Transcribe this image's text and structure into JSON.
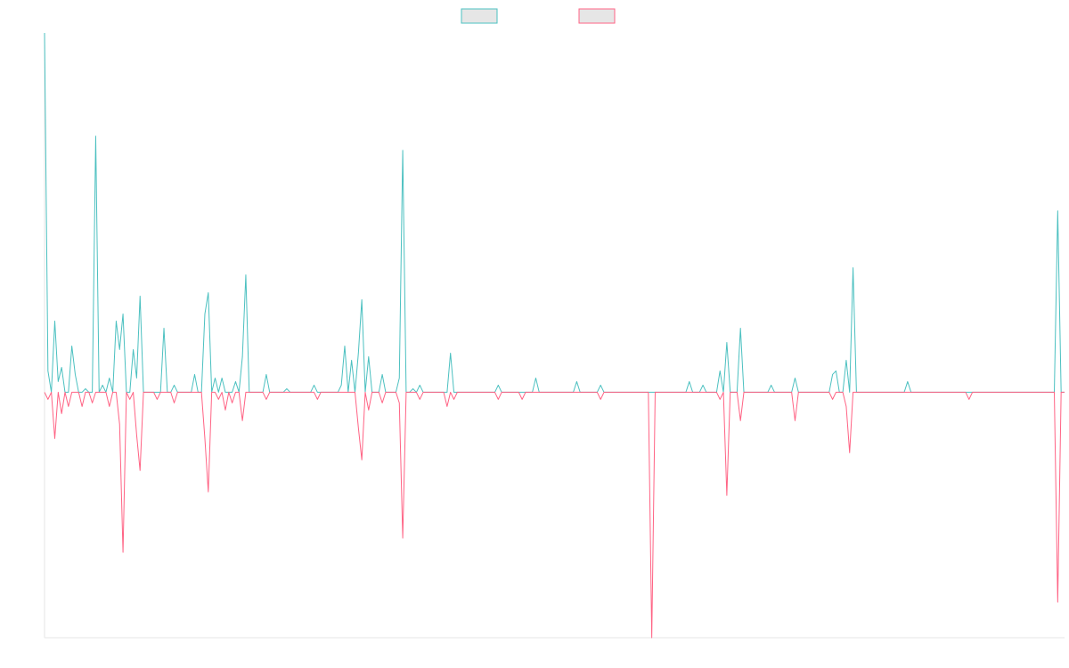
{
  "chart_data": {
    "type": "line",
    "legend": "top",
    "ylim": [
      -69,
      101
    ],
    "categories": [
      null,
      null,
      null,
      null,
      null,
      null,
      null,
      null,
      null,
      null,
      null,
      null,
      null,
      null,
      null,
      null,
      null,
      null,
      null,
      null,
      null,
      null,
      null,
      null,
      null,
      null,
      null,
      null,
      null,
      null,
      null,
      null,
      null,
      null,
      null,
      null,
      null,
      null,
      null,
      null,
      null,
      null,
      null,
      null,
      null,
      null,
      null,
      null,
      null,
      null,
      null,
      null,
      null,
      null,
      null,
      null,
      null,
      null,
      null,
      null,
      null,
      null,
      null,
      null,
      null,
      null,
      null,
      null,
      null,
      null,
      null,
      null,
      null,
      null,
      null,
      null,
      null,
      null,
      null,
      null,
      null,
      null,
      null,
      null,
      null,
      null,
      null,
      null,
      null,
      null,
      null,
      null,
      null,
      null,
      null,
      null,
      null,
      null,
      null,
      null,
      null,
      null,
      null,
      null,
      null,
      null,
      null,
      null,
      null,
      null,
      null,
      null,
      null,
      null,
      null,
      null,
      null,
      null,
      null,
      null,
      null,
      null,
      null,
      null,
      null,
      null,
      null,
      null,
      null,
      null,
      null,
      null,
      null,
      null,
      null,
      null,
      null,
      null,
      null,
      null,
      null,
      null,
      null,
      null,
      null,
      null,
      null,
      null,
      null,
      null,
      null,
      null,
      null,
      null,
      null,
      null,
      null,
      null,
      null,
      null,
      null,
      null,
      null,
      null,
      null,
      null,
      null,
      null,
      null,
      null,
      null,
      null,
      null,
      null,
      null,
      null,
      null,
      null,
      null,
      null,
      null,
      null,
      null,
      null,
      null,
      null,
      null,
      null,
      null,
      null,
      null,
      null,
      null,
      null,
      null,
      null,
      null,
      null,
      null,
      null,
      null,
      null,
      null,
      null,
      null,
      null,
      null,
      null,
      null,
      null,
      null,
      null,
      null,
      null,
      null,
      null,
      null,
      null,
      null,
      null,
      null,
      null,
      null,
      null,
      null,
      null,
      null,
      null,
      null,
      null,
      null,
      null,
      null,
      null,
      null,
      null,
      null,
      null,
      null,
      null,
      null,
      null,
      null,
      null,
      null,
      null,
      null,
      null,
      null,
      null,
      null,
      null,
      null,
      null,
      null,
      null,
      null,
      null,
      null,
      null,
      null,
      null,
      null,
      null,
      null,
      null,
      null,
      null,
      null,
      null,
      null,
      null,
      null,
      null,
      null,
      null,
      null,
      null,
      null,
      null,
      null,
      null,
      null,
      null,
      null,
      null,
      null,
      null,
      null,
      null,
      null,
      null,
      null,
      null,
      null,
      null,
      null,
      null,
      null,
      null
    ],
    "series": [
      {
        "color": "#4bc0c0",
        "values": [
          101,
          6,
          0,
          20,
          3,
          7,
          0,
          0,
          13,
          5,
          0,
          0,
          1,
          0,
          0,
          72,
          0,
          2,
          0,
          4,
          0,
          20,
          12,
          22,
          0,
          0,
          12,
          4,
          27,
          0,
          0,
          0,
          0,
          0,
          0,
          18,
          0,
          0,
          2,
          0,
          0,
          0,
          0,
          0,
          5,
          0,
          0,
          22,
          28,
          0,
          4,
          0,
          4,
          0,
          0,
          0,
          3,
          0,
          10,
          33,
          0,
          0,
          0,
          0,
          0,
          5,
          0,
          0,
          0,
          0,
          0,
          1,
          0,
          0,
          0,
          0,
          0,
          0,
          0,
          2,
          0,
          0,
          0,
          0,
          0,
          0,
          0,
          2,
          13,
          0,
          9,
          0,
          11,
          26,
          0,
          10,
          0,
          0,
          0,
          5,
          0,
          0,
          0,
          0,
          4,
          68,
          0,
          0,
          1,
          0,
          2,
          0,
          0,
          0,
          0,
          0,
          0,
          0,
          0,
          11,
          0,
          0,
          0,
          0,
          0,
          0,
          0,
          0,
          0,
          0,
          0,
          0,
          0,
          2,
          0,
          0,
          0,
          0,
          0,
          0,
          0,
          0,
          0,
          0,
          4,
          0,
          0,
          0,
          0,
          0,
          0,
          0,
          0,
          0,
          0,
          0,
          3,
          0,
          0,
          0,
          0,
          0,
          0,
          2,
          0,
          0,
          0,
          0,
          0,
          0,
          0,
          0,
          0,
          0,
          0,
          0,
          0,
          0,
          0,
          0,
          0,
          0,
          0,
          0,
          0,
          0,
          0,
          0,
          0,
          3,
          0,
          0,
          0,
          2,
          0,
          0,
          0,
          0,
          6,
          0,
          14,
          0,
          0,
          0,
          18,
          0,
          0,
          0,
          0,
          0,
          0,
          0,
          0,
          2,
          0,
          0,
          0,
          0,
          0,
          0,
          4,
          0,
          0,
          0,
          0,
          0,
          0,
          0,
          0,
          0,
          0,
          5,
          6,
          0,
          0,
          9,
          0,
          35,
          0,
          0,
          0,
          0,
          0,
          0,
          0,
          0,
          0,
          0,
          0,
          0,
          0,
          0,
          0,
          3,
          0,
          0,
          0,
          0,
          0,
          0,
          0,
          0,
          0,
          0,
          0,
          0,
          0,
          0,
          0,
          0,
          0,
          0,
          0,
          0,
          0,
          0,
          0,
          0,
          0,
          0,
          0,
          0,
          0,
          0,
          0,
          0,
          0,
          0,
          0,
          0,
          0,
          0,
          0,
          0,
          0,
          0,
          0,
          51,
          0,
          0
        ]
      },
      {
        "color": "#ff6384",
        "values": [
          0,
          -2,
          0,
          -13,
          0,
          -6,
          0,
          -4,
          0,
          0,
          0,
          -4,
          0,
          0,
          -3,
          0,
          0,
          0,
          0,
          -4,
          0,
          0,
          -9,
          -45,
          0,
          -2,
          0,
          -12,
          -22,
          0,
          0,
          0,
          0,
          -2,
          0,
          0,
          0,
          0,
          -3,
          0,
          0,
          0,
          0,
          0,
          0,
          0,
          0,
          -13,
          -28,
          0,
          0,
          -2,
          0,
          -5,
          0,
          -3,
          0,
          0,
          -8,
          0,
          0,
          0,
          0,
          0,
          0,
          -2,
          0,
          0,
          0,
          0,
          0,
          0,
          0,
          0,
          0,
          0,
          0,
          0,
          0,
          0,
          -2,
          0,
          0,
          0,
          0,
          0,
          0,
          0,
          0,
          0,
          0,
          0,
          -10,
          -19,
          0,
          -5,
          0,
          0,
          0,
          -3,
          0,
          0,
          0,
          0,
          -3,
          -41,
          0,
          0,
          0,
          0,
          -2,
          0,
          0,
          0,
          0,
          0,
          0,
          0,
          -4,
          0,
          -2,
          0,
          0,
          0,
          0,
          0,
          0,
          0,
          0,
          0,
          0,
          0,
          0,
          -2,
          0,
          0,
          0,
          0,
          0,
          0,
          -2,
          0,
          0,
          0,
          0,
          0,
          0,
          0,
          0,
          0,
          0,
          0,
          0,
          0,
          0,
          0,
          0,
          0,
          0,
          0,
          0,
          0,
          0,
          -2,
          0,
          0,
          0,
          0,
          0,
          0,
          0,
          0,
          0,
          0,
          0,
          0,
          0,
          0,
          -69,
          0,
          0,
          0,
          0,
          0,
          0,
          0,
          0,
          0,
          0,
          0,
          0,
          0,
          0,
          0,
          0,
          0,
          0,
          0,
          -2,
          0,
          -29,
          0,
          0,
          0,
          -8,
          0,
          0,
          0,
          0,
          0,
          0,
          0,
          0,
          0,
          0,
          0,
          0,
          0,
          0,
          0,
          -8,
          0,
          0,
          0,
          0,
          0,
          0,
          0,
          0,
          0,
          0,
          -2,
          0,
          0,
          0,
          -4,
          -17,
          0,
          0,
          0,
          0,
          0,
          0,
          0,
          0,
          0,
          0,
          0,
          0,
          0,
          0,
          0,
          0,
          0,
          0,
          0,
          0,
          0,
          0,
          0,
          0,
          0,
          0,
          0,
          0,
          0,
          0,
          0,
          0,
          0,
          0,
          -2,
          0,
          0,
          0,
          0,
          0,
          0,
          0,
          0,
          0,
          0,
          0,
          0,
          0,
          0,
          0,
          0,
          0,
          0,
          0,
          0,
          0,
          0,
          0,
          0,
          0,
          -59,
          0,
          0
        ]
      }
    ]
  }
}
